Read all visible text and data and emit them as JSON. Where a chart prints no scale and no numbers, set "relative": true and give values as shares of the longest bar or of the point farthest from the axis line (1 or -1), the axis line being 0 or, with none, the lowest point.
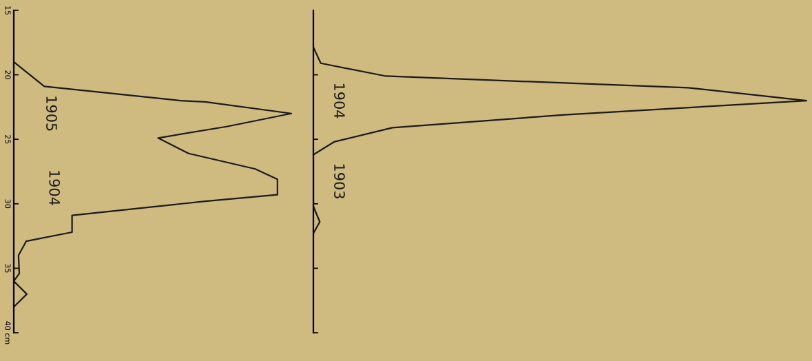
{
  "chart_data": [
    {
      "type": "line",
      "orientation": "horizontal",
      "relative": true,
      "ylim": [
        40,
        15
      ],
      "yticks": [
        15,
        20,
        25,
        30,
        35,
        {
          "value": 40,
          "label": "40 cm"
        }
      ],
      "tick_labels": "y",
      "grid": false,
      "marker": "none",
      "line_style": "solid",
      "series": [
        {
          "color": "#1a1a1a",
          "x": [
            19.0,
            20.9,
            22.0,
            22.1,
            23.0,
            24.0,
            24.9,
            26.1,
            27.3,
            28.1,
            29.3,
            29.8,
            30.9,
            32.2,
            32.9,
            34.0,
            35.4,
            36.0,
            37.0,
            38.0
          ],
          "values": [
            0,
            0.11,
            0.6,
            0.69,
            1.0,
            0.77,
            0.52,
            0.63,
            0.87,
            0.95,
            0.95,
            0.69,
            0.21,
            0.21,
            0.045,
            0.017,
            0.02,
            0,
            0.047,
            0
          ]
        }
      ],
      "annotations": [
        "1905",
        "1904"
      ]
    },
    {
      "type": "line",
      "orientation": "horizontal",
      "relative": true,
      "ylim": [
        40,
        15
      ],
      "yticks": [
        {
          "value": 20,
          "label": null
        },
        {
          "value": 25,
          "label": null
        },
        {
          "value": 30,
          "label": null
        },
        {
          "value": 35,
          "label": null
        },
        {
          "value": 40,
          "label": null
        }
      ],
      "tick_labels": false,
      "grid": false,
      "marker": "none",
      "line_style": "solid",
      "series": [
        {
          "color": "#1a1a1a",
          "x": [
            17.85,
            19.1,
            20.1,
            21.0,
            22.0,
            23.1,
            24.1,
            25.2,
            26.2,
            30.2,
            31.4,
            32.3
          ],
          "values": [
            0,
            0.015,
            0.147,
            0.76,
            1.0,
            0.51,
            0.16,
            0.042,
            0,
            0,
            0.013,
            0
          ]
        }
      ],
      "annotations": [
        "1904",
        "1903"
      ]
    }
  ]
}
